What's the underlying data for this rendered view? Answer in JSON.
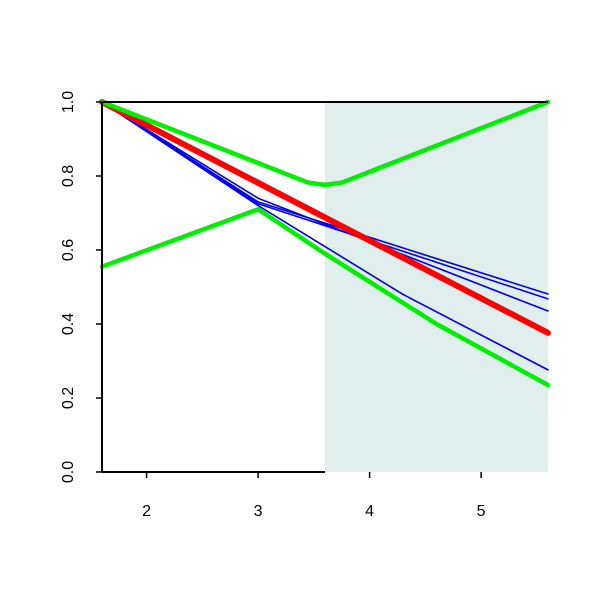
{
  "chart_data": {
    "type": "line",
    "xlim": [
      1.6,
      5.6
    ],
    "ylim": [
      0,
      1
    ],
    "xticks": [
      2,
      3,
      4,
      5
    ],
    "yticks": [
      {
        "value": 0,
        "label": "0.0"
      },
      {
        "value": 0.2,
        "label": "0.2"
      },
      {
        "value": 0.4,
        "label": "0.4"
      },
      {
        "value": 0.6,
        "label": "0.6"
      },
      {
        "value": 0.8,
        "label": "0.8"
      },
      {
        "value": 1,
        "label": "1.0"
      }
    ],
    "shaded_xlim": [
      3.6,
      5.6
    ],
    "shade_color": "#e0eeee",
    "series": [
      {
        "color": "#0000ee",
        "width": 1.6,
        "x": [
          1.6,
          3.0,
          5.6
        ],
        "values": [
          1.0,
          0.73,
          0.481
        ]
      },
      {
        "color": "#0000ee",
        "width": 1.6,
        "x": [
          1.6,
          3.0,
          5.6
        ],
        "values": [
          1.0,
          0.725,
          0.468
        ]
      },
      {
        "color": "#0000ee",
        "width": 1.6,
        "x": [
          1.6,
          3.0,
          5.6
        ],
        "values": [
          1.0,
          0.74,
          0.435
        ]
      },
      {
        "color": "#0000ee",
        "width": 1.6,
        "x": [
          1.6,
          3.0,
          4.3,
          5.6
        ],
        "values": [
          1.0,
          0.72,
          0.48,
          0.276
        ]
      },
      {
        "color": "#ff0000",
        "width": 6,
        "x": [
          1.6,
          5.6
        ],
        "values": [
          1.0,
          0.376
        ]
      },
      {
        "color": "#00ee00",
        "width": 4.5,
        "x": [
          1.6,
          3.45,
          3.6,
          3.75,
          5.6
        ],
        "values": [
          1.0,
          0.782,
          0.776,
          0.782,
          1.0
        ]
      },
      {
        "color": "#00ee00",
        "width": 4.5,
        "x": [
          1.6,
          3.0,
          3.6,
          4.6,
          5.6
        ],
        "values": [
          0.555,
          0.71,
          0.59,
          0.4,
          0.235
        ]
      }
    ]
  }
}
